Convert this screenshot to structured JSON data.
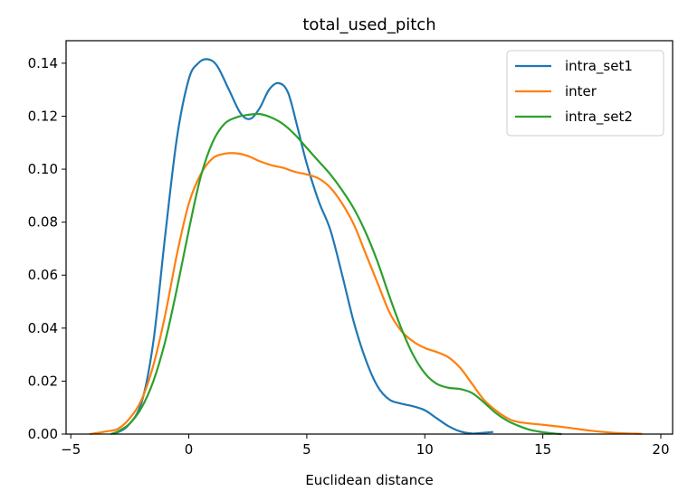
{
  "chart_data": {
    "type": "line",
    "title": "total_used_pitch",
    "xlabel": "Euclidean distance",
    "ylabel": "",
    "xlim": [
      -5.2,
      20.5
    ],
    "ylim": [
      0,
      0.1485
    ],
    "x_ticks": [
      -5,
      0,
      5,
      10,
      15,
      20
    ],
    "x_tick_labels": [
      "−5",
      "0",
      "5",
      "10",
      "15",
      "20"
    ],
    "y_ticks": [
      0,
      0.02,
      0.04,
      0.06,
      0.08,
      0.1,
      0.12,
      0.14
    ],
    "y_tick_labels": [
      "0.00",
      "0.02",
      "0.04",
      "0.06",
      "0.08",
      "0.10",
      "0.12",
      "0.14"
    ],
    "grid": false,
    "legend_position": "top-right",
    "series": [
      {
        "name": "intra_set1",
        "color": "#1f77b4",
        "points": [
          [
            -3.2,
            0.0
          ],
          [
            -2.6,
            0.003
          ],
          [
            -2.0,
            0.012
          ],
          [
            -1.5,
            0.035
          ],
          [
            -1.0,
            0.075
          ],
          [
            -0.5,
            0.112
          ],
          [
            0.0,
            0.134
          ],
          [
            0.4,
            0.14
          ],
          [
            0.8,
            0.1415
          ],
          [
            1.2,
            0.139
          ],
          [
            1.7,
            0.13
          ],
          [
            2.2,
            0.121
          ],
          [
            2.6,
            0.119
          ],
          [
            3.0,
            0.123
          ],
          [
            3.4,
            0.13
          ],
          [
            3.8,
            0.1325
          ],
          [
            4.2,
            0.129
          ],
          [
            4.6,
            0.116
          ],
          [
            5.0,
            0.102
          ],
          [
            5.5,
            0.088
          ],
          [
            6.0,
            0.077
          ],
          [
            6.5,
            0.06
          ],
          [
            7.0,
            0.042
          ],
          [
            7.5,
            0.028
          ],
          [
            8.0,
            0.018
          ],
          [
            8.5,
            0.013
          ],
          [
            9.0,
            0.0115
          ],
          [
            9.5,
            0.0105
          ],
          [
            10.0,
            0.009
          ],
          [
            10.5,
            0.006
          ],
          [
            11.0,
            0.003
          ],
          [
            11.5,
            0.001
          ],
          [
            12.0,
            0.0002
          ],
          [
            12.5,
            0.0005
          ],
          [
            12.9,
            0.0008
          ]
        ]
      },
      {
        "name": "inter",
        "color": "#ff7f0e",
        "points": [
          [
            -4.2,
            0.0
          ],
          [
            -3.5,
            0.001
          ],
          [
            -3.0,
            0.002
          ],
          [
            -2.5,
            0.006
          ],
          [
            -2.0,
            0.013
          ],
          [
            -1.5,
            0.026
          ],
          [
            -1.0,
            0.045
          ],
          [
            -0.5,
            0.068
          ],
          [
            0.0,
            0.087
          ],
          [
            0.5,
            0.098
          ],
          [
            1.0,
            0.104
          ],
          [
            1.5,
            0.1058
          ],
          [
            2.0,
            0.106
          ],
          [
            2.5,
            0.105
          ],
          [
            3.0,
            0.103
          ],
          [
            3.5,
            0.1015
          ],
          [
            4.0,
            0.1005
          ],
          [
            4.5,
            0.099
          ],
          [
            5.0,
            0.098
          ],
          [
            5.5,
            0.0965
          ],
          [
            6.0,
            0.093
          ],
          [
            6.5,
            0.087
          ],
          [
            7.0,
            0.079
          ],
          [
            7.5,
            0.068
          ],
          [
            8.0,
            0.057
          ],
          [
            8.5,
            0.046
          ],
          [
            9.0,
            0.039
          ],
          [
            9.5,
            0.035
          ],
          [
            10.0,
            0.0325
          ],
          [
            10.5,
            0.031
          ],
          [
            11.0,
            0.029
          ],
          [
            11.5,
            0.025
          ],
          [
            12.0,
            0.019
          ],
          [
            12.5,
            0.013
          ],
          [
            13.0,
            0.009
          ],
          [
            13.5,
            0.006
          ],
          [
            14.0,
            0.0045
          ],
          [
            15.0,
            0.0035
          ],
          [
            16.0,
            0.0025
          ],
          [
            17.0,
            0.0013
          ],
          [
            18.0,
            0.0005
          ],
          [
            19.2,
            0.0001
          ]
        ]
      },
      {
        "name": "intra_set2",
        "color": "#2ca02c",
        "points": [
          [
            -3.3,
            0.0
          ],
          [
            -3.0,
            0.001
          ],
          [
            -2.5,
            0.004
          ],
          [
            -2.0,
            0.01
          ],
          [
            -1.5,
            0.02
          ],
          [
            -1.0,
            0.035
          ],
          [
            -0.5,
            0.055
          ],
          [
            0.0,
            0.077
          ],
          [
            0.5,
            0.097
          ],
          [
            1.0,
            0.11
          ],
          [
            1.5,
            0.117
          ],
          [
            2.0,
            0.1195
          ],
          [
            2.5,
            0.1205
          ],
          [
            3.0,
            0.1208
          ],
          [
            3.5,
            0.1195
          ],
          [
            4.0,
            0.117
          ],
          [
            4.5,
            0.113
          ],
          [
            5.0,
            0.108
          ],
          [
            5.5,
            0.103
          ],
          [
            6.0,
            0.098
          ],
          [
            6.5,
            0.092
          ],
          [
            7.0,
            0.085
          ],
          [
            7.5,
            0.076
          ],
          [
            8.0,
            0.065
          ],
          [
            8.5,
            0.052
          ],
          [
            9.0,
            0.04
          ],
          [
            9.5,
            0.03
          ],
          [
            10.0,
            0.023
          ],
          [
            10.5,
            0.019
          ],
          [
            11.0,
            0.0175
          ],
          [
            11.5,
            0.017
          ],
          [
            12.0,
            0.0155
          ],
          [
            12.5,
            0.012
          ],
          [
            13.0,
            0.008
          ],
          [
            13.5,
            0.005
          ],
          [
            14.0,
            0.003
          ],
          [
            14.5,
            0.0015
          ],
          [
            15.0,
            0.0007
          ],
          [
            15.5,
            0.0002
          ],
          [
            15.8,
            0.0
          ]
        ]
      }
    ]
  }
}
